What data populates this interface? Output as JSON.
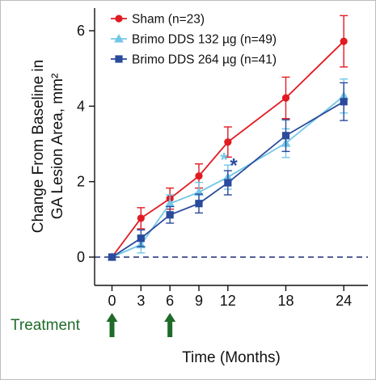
{
  "chart_data": {
    "type": "line",
    "xlabel": "Time (Months)",
    "ylabel_line1": "Change From Baseline in",
    "ylabel_line2": "GA Lesion Area, mm²",
    "x_ticks": [
      0,
      3,
      6,
      9,
      12,
      18,
      24
    ],
    "y_ticks": [
      0,
      2,
      4,
      6
    ],
    "xlim": [
      -1.8,
      26.5
    ],
    "ylim": [
      -0.75,
      6.6
    ],
    "reference_line": {
      "y": 0,
      "style": "dashed",
      "color": "#1e2a78"
    },
    "series": [
      {
        "name": "Sham (n=23)",
        "color": "#e11b22",
        "marker": "circle",
        "x": [
          0,
          3,
          6,
          9,
          12,
          18,
          24
        ],
        "y": [
          0.0,
          1.03,
          1.55,
          2.15,
          3.05,
          4.22,
          5.72
        ],
        "err": [
          0,
          0.28,
          0.28,
          0.32,
          0.4,
          0.55,
          0.68
        ]
      },
      {
        "name": "Brimo DDS 132 µg (n=49)",
        "color": "#72c7e7",
        "marker": "triangle",
        "x": [
          0,
          3,
          6,
          9,
          12,
          18,
          24
        ],
        "y": [
          0.0,
          0.33,
          1.42,
          1.72,
          2.12,
          3.02,
          4.27
        ],
        "err": [
          0,
          0.22,
          0.23,
          0.26,
          0.32,
          0.38,
          0.45
        ]
      },
      {
        "name": "Brimo DDS 264 µg (n=41)",
        "color": "#2a4a9c",
        "marker": "square",
        "x": [
          0,
          3,
          6,
          9,
          12,
          18,
          24
        ],
        "y": [
          0.0,
          0.5,
          1.12,
          1.42,
          1.97,
          3.22,
          4.12
        ],
        "err": [
          0,
          0.22,
          0.22,
          0.25,
          0.32,
          0.42,
          0.5
        ]
      }
    ],
    "annotations": [
      {
        "text": "*",
        "x": 11.6,
        "y": 2.62,
        "color": "#72c7e7"
      },
      {
        "text": "*",
        "x": 12.6,
        "y": 2.48,
        "color": "#2a4a9c"
      }
    ],
    "treatment": {
      "label": "Treatment",
      "months": [
        0,
        6
      ],
      "color": "#1f6b2a"
    }
  }
}
